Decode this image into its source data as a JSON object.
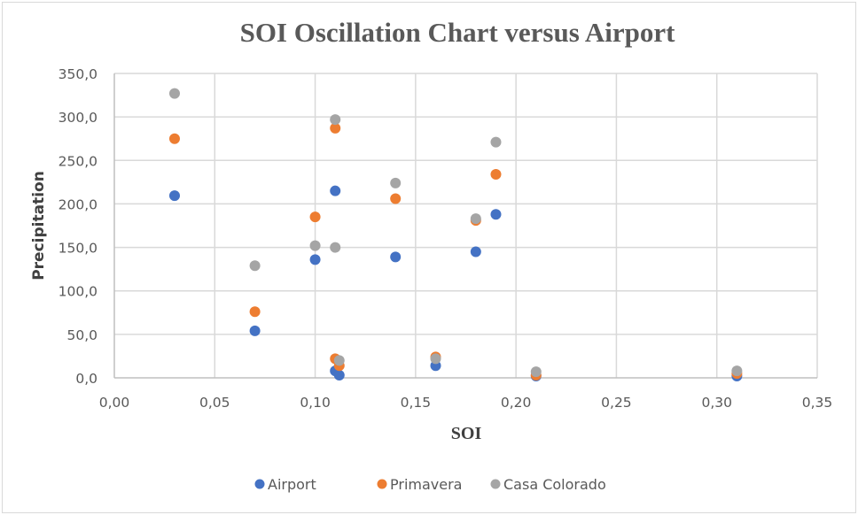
{
  "chart_data": {
    "type": "scatter",
    "title": "SOI Oscillation Chart versus Airport",
    "xlabel": "SOI",
    "ylabel": "Precipitation",
    "xlim": [
      0,
      0.35
    ],
    "ylim": [
      0,
      350
    ],
    "x_ticks": [
      0,
      0.05,
      0.1,
      0.15,
      0.2,
      0.25,
      0.3,
      0.35
    ],
    "x_tick_labels": [
      "0,00",
      "0,05",
      "0,10",
      "0,15",
      "0,20",
      "0,25",
      "0,30",
      "0,35"
    ],
    "y_ticks": [
      0,
      50,
      100,
      150,
      200,
      250,
      300,
      350
    ],
    "y_tick_labels": [
      "0,0",
      "50,0",
      "100,0",
      "150,0",
      "200,0",
      "250,0",
      "300,0",
      "350,0"
    ],
    "grid": true,
    "legend_position": "bottom",
    "series": [
      {
        "name": "Airport",
        "color": "#4472c4",
        "points": [
          [
            0.03,
            209.5
          ],
          [
            0.07,
            54
          ],
          [
            0.1,
            136
          ],
          [
            0.11,
            215
          ],
          [
            0.11,
            8
          ],
          [
            0.112,
            3
          ],
          [
            0.14,
            139
          ],
          [
            0.16,
            14
          ],
          [
            0.18,
            145
          ],
          [
            0.19,
            188
          ],
          [
            0.21,
            2
          ],
          [
            0.31,
            2
          ]
        ]
      },
      {
        "name": "Primavera",
        "color": "#ed7d31",
        "points": [
          [
            0.03,
            275
          ],
          [
            0.07,
            76
          ],
          [
            0.1,
            185
          ],
          [
            0.11,
            287
          ],
          [
            0.11,
            22
          ],
          [
            0.112,
            14
          ],
          [
            0.14,
            206
          ],
          [
            0.16,
            24
          ],
          [
            0.18,
            181
          ],
          [
            0.19,
            234
          ],
          [
            0.21,
            3
          ],
          [
            0.31,
            5
          ]
        ]
      },
      {
        "name": "Casa Colorado",
        "color": "#a5a5a5",
        "points": [
          [
            0.03,
            327
          ],
          [
            0.07,
            129
          ],
          [
            0.1,
            152
          ],
          [
            0.11,
            297
          ],
          [
            0.11,
            150
          ],
          [
            0.112,
            20
          ],
          [
            0.14,
            224
          ],
          [
            0.16,
            22
          ],
          [
            0.18,
            183
          ],
          [
            0.19,
            271
          ],
          [
            0.21,
            7
          ],
          [
            0.31,
            8
          ]
        ]
      }
    ]
  }
}
